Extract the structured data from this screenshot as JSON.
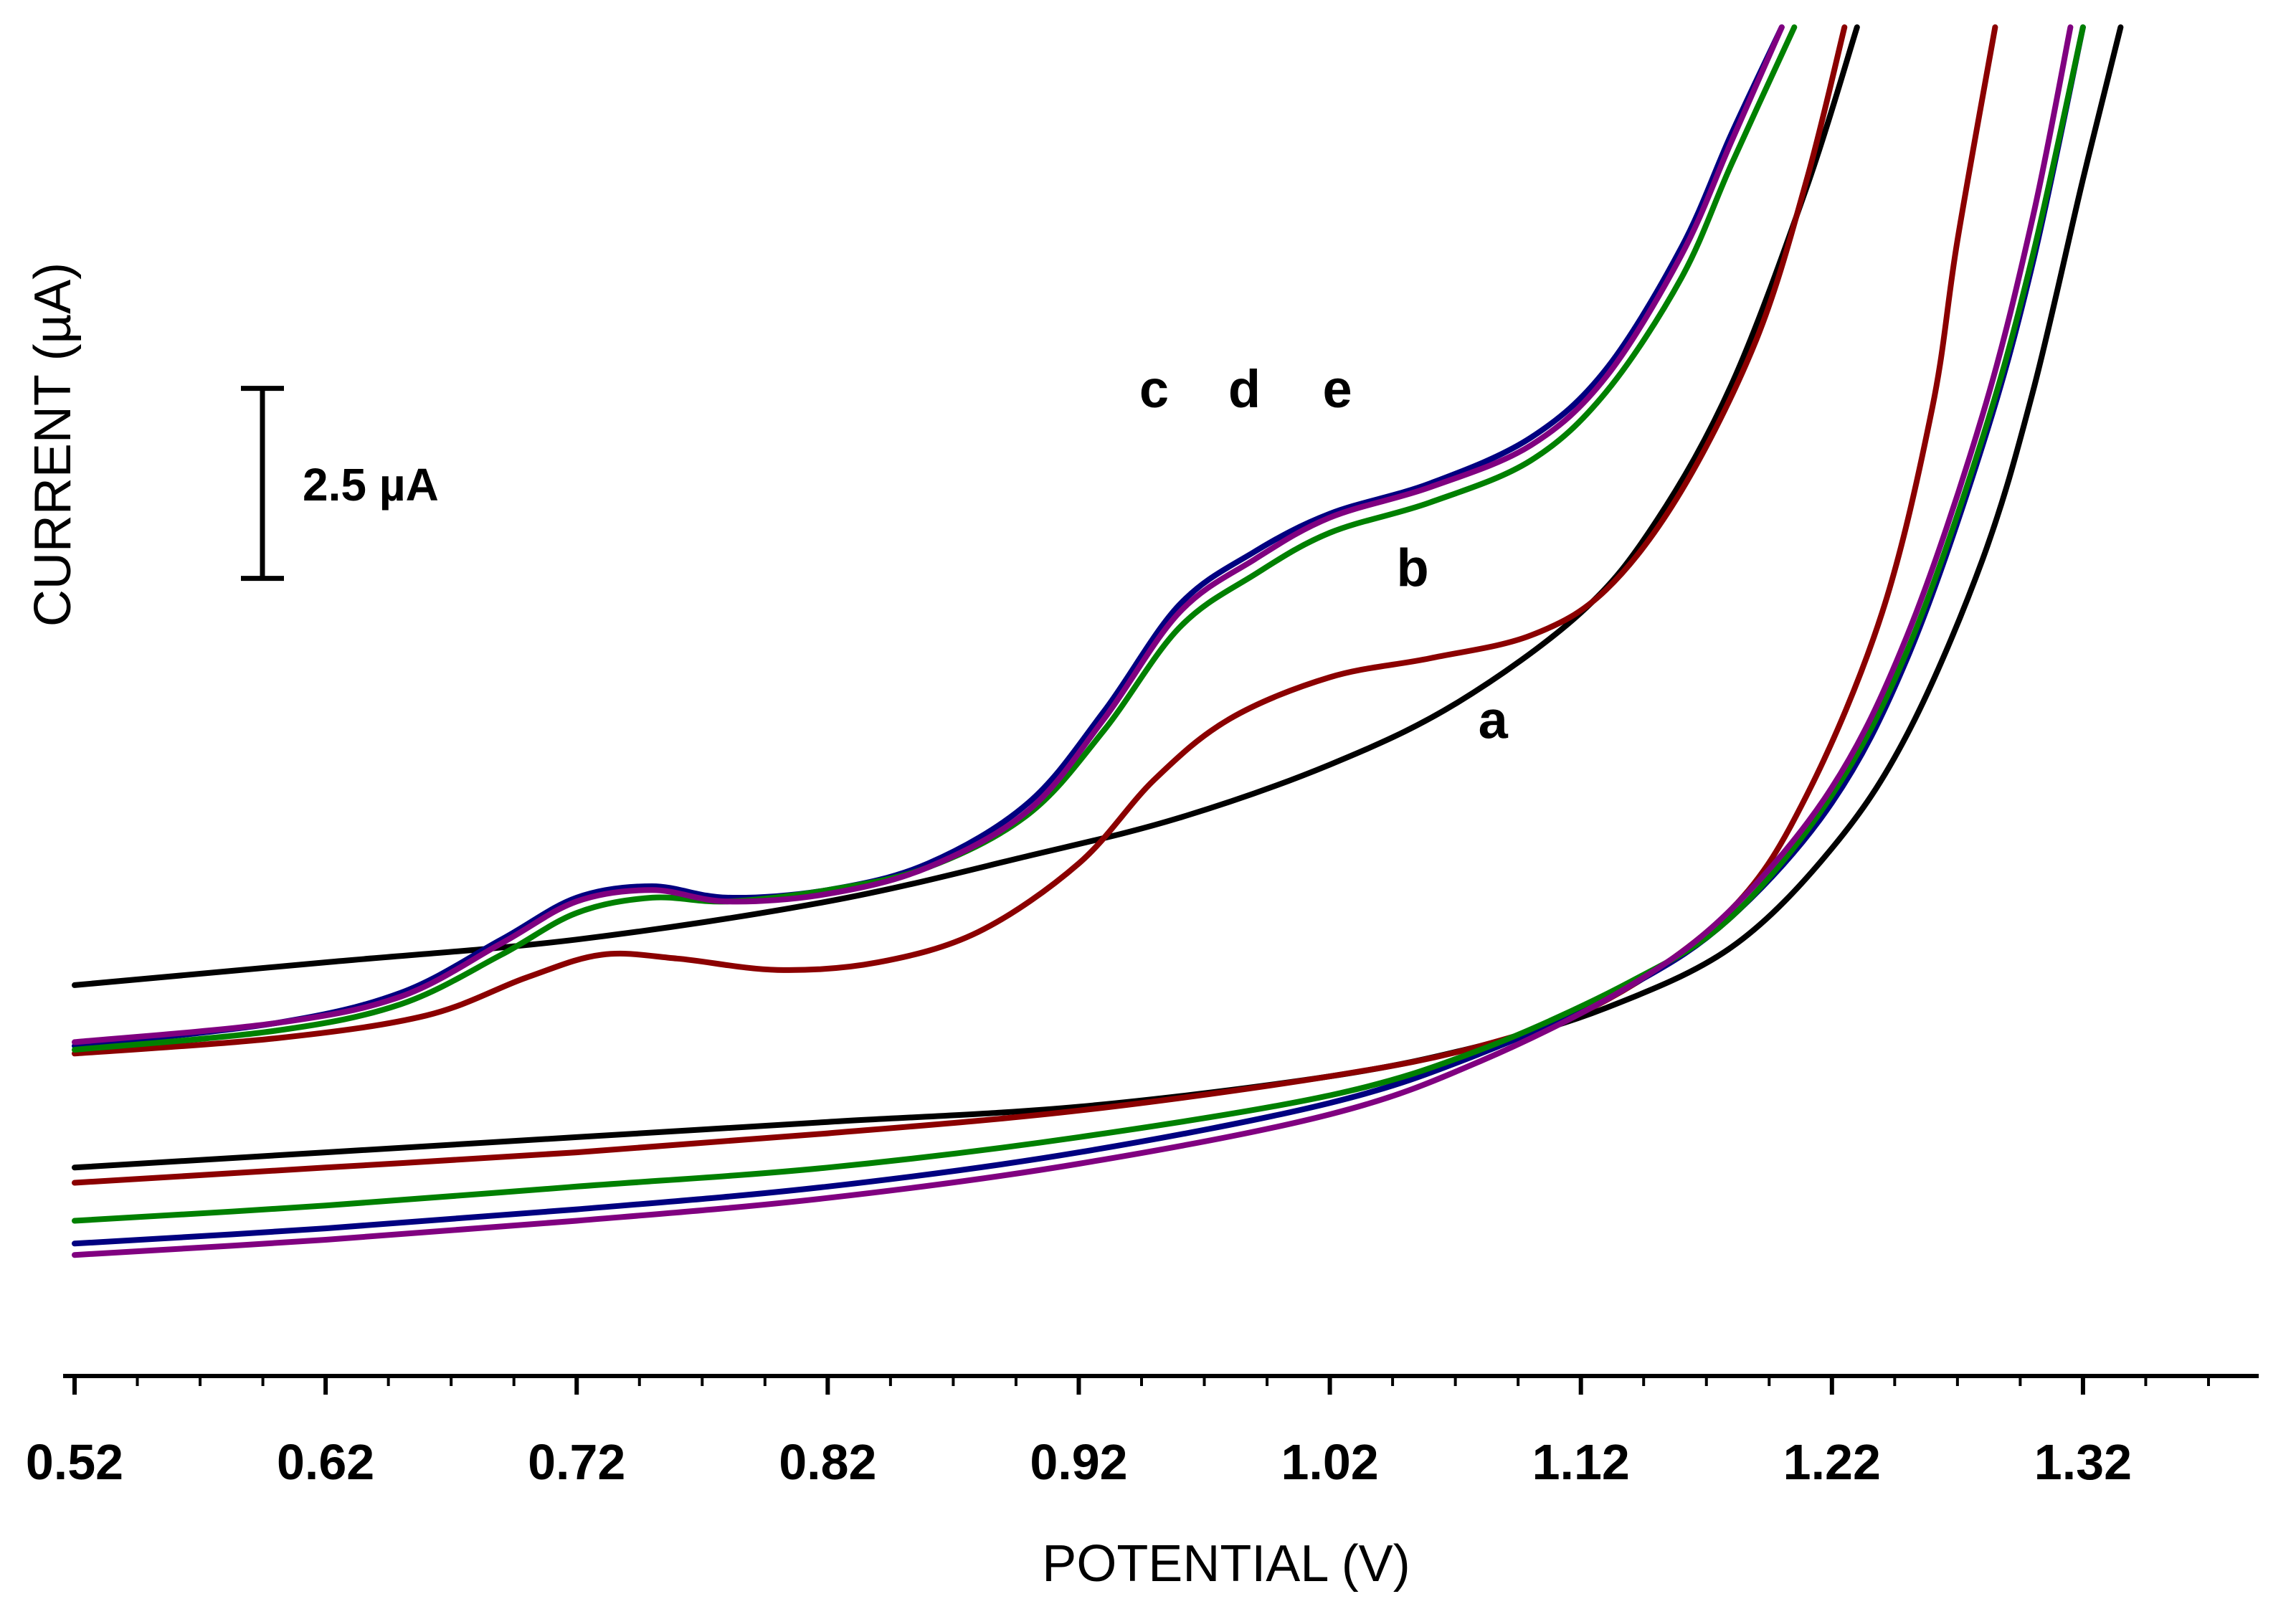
{
  "chart_data": {
    "type": "line",
    "title": "",
    "xlabel": "POTENTIAL (V)",
    "ylabel": "CURRENT (µA)",
    "xlim": [
      0.52,
      1.39
    ],
    "ylim": [
      -5.3,
      13.3
    ],
    "x_ticks": [
      0.52,
      0.62,
      0.72,
      0.82,
      0.92,
      1.02,
      1.12,
      1.22,
      1.32
    ],
    "x_tick_labels": [
      "0.52",
      "0.62",
      "0.72",
      "0.82",
      "0.92",
      "1.02",
      "1.12",
      "1.22",
      "1.32"
    ],
    "y_ticks_shown": false,
    "scale_bar": {
      "label": "2.5 µA",
      "value": 2.5,
      "anchor_y": 8.55
    },
    "curve_labels": [
      {
        "text": "a",
        "x": 1.085,
        "y": 3.95
      },
      {
        "text": "b",
        "x": 1.053,
        "y": 5.95
      },
      {
        "text": "c",
        "x": 0.95,
        "y": 8.3
      },
      {
        "text": "d",
        "x": 0.986,
        "y": 8.3
      },
      {
        "text": "e",
        "x": 1.023,
        "y": 8.3
      }
    ],
    "series": [
      {
        "name": "a",
        "color": "#000000",
        "part": "forward",
        "x": [
          0.52,
          0.62,
          0.72,
          0.82,
          0.9,
          0.96,
          1.02,
          1.07,
          1.12,
          1.15,
          1.18,
          1.21,
          1.23
        ],
        "y": [
          0.7,
          1.0,
          1.3,
          1.8,
          2.4,
          2.9,
          3.6,
          4.4,
          5.6,
          6.8,
          8.6,
          11.2,
          13.3
        ]
      },
      {
        "name": "a",
        "color": "#000000",
        "part": "reverse",
        "x": [
          0.52,
          0.62,
          0.72,
          0.82,
          0.92,
          1.02,
          1.08,
          1.13,
          1.18,
          1.22,
          1.25,
          1.28,
          1.3,
          1.32,
          1.335
        ],
        "y": [
          -1.7,
          -1.5,
          -1.3,
          -1.1,
          -0.9,
          -0.5,
          -0.1,
          0.4,
          1.2,
          2.5,
          4.0,
          6.3,
          8.5,
          11.3,
          13.3
        ]
      },
      {
        "name": "b",
        "color": "#8b0000",
        "part": "forward",
        "x": [
          0.52,
          0.6,
          0.66,
          0.7,
          0.73,
          0.76,
          0.8,
          0.84,
          0.88,
          0.92,
          0.95,
          0.98,
          1.02,
          1.06,
          1.1,
          1.13,
          1.16,
          1.19,
          1.21,
          1.225
        ],
        "y": [
          -0.2,
          0.0,
          0.3,
          0.8,
          1.1,
          1.05,
          0.9,
          1.0,
          1.4,
          2.3,
          3.4,
          4.2,
          4.75,
          5.0,
          5.3,
          5.9,
          7.2,
          9.2,
          11.3,
          13.3
        ]
      },
      {
        "name": "b",
        "color": "#8b0000",
        "part": "reverse",
        "x": [
          0.52,
          0.62,
          0.72,
          0.82,
          0.92,
          1.02,
          1.08,
          1.13,
          1.18,
          1.21,
          1.24,
          1.26,
          1.27,
          1.285
        ],
        "y": [
          -1.9,
          -1.7,
          -1.5,
          -1.25,
          -0.95,
          -0.5,
          -0.1,
          0.5,
          1.7,
          3.2,
          5.6,
          8.3,
          10.5,
          13.3
        ]
      },
      {
        "name": "c",
        "color": "#000080",
        "part": "forward",
        "x": [
          0.52,
          0.6,
          0.65,
          0.69,
          0.72,
          0.75,
          0.78,
          0.82,
          0.86,
          0.9,
          0.93,
          0.96,
          0.99,
          1.02,
          1.06,
          1.1,
          1.13,
          1.16,
          1.18,
          1.2
        ],
        "y": [
          -0.1,
          0.2,
          0.6,
          1.3,
          1.85,
          2.0,
          1.85,
          1.95,
          2.3,
          3.1,
          4.3,
          5.7,
          6.4,
          6.9,
          7.3,
          7.9,
          8.8,
          10.4,
          11.9,
          13.3
        ]
      },
      {
        "name": "c",
        "color": "#000080",
        "part": "reverse",
        "x": [
          0.52,
          0.62,
          0.72,
          0.82,
          0.92,
          1.02,
          1.08,
          1.14,
          1.18,
          1.22,
          1.25,
          1.28,
          1.3,
          1.32
        ],
        "y": [
          -2.7,
          -2.5,
          -2.25,
          -1.95,
          -1.5,
          -0.85,
          -0.2,
          0.7,
          1.6,
          3.1,
          5.0,
          7.8,
          10.2,
          13.3
        ]
      },
      {
        "name": "d",
        "color": "#008000",
        "part": "forward",
        "x": [
          0.52,
          0.6,
          0.65,
          0.69,
          0.72,
          0.75,
          0.78,
          0.82,
          0.86,
          0.9,
          0.93,
          0.96,
          0.99,
          1.02,
          1.06,
          1.1,
          1.13,
          1.16,
          1.18,
          1.205
        ],
        "y": [
          -0.15,
          0.1,
          0.45,
          1.1,
          1.65,
          1.85,
          1.8,
          1.95,
          2.25,
          2.95,
          4.05,
          5.4,
          6.1,
          6.65,
          7.05,
          7.6,
          8.5,
          10.0,
          11.5,
          13.3
        ]
      },
      {
        "name": "d",
        "color": "#008000",
        "part": "reverse",
        "x": [
          0.52,
          0.62,
          0.72,
          0.82,
          0.92,
          1.02,
          1.08,
          1.14,
          1.18,
          1.22,
          1.25,
          1.28,
          1.3,
          1.32
        ],
        "y": [
          -2.4,
          -2.2,
          -1.95,
          -1.7,
          -1.3,
          -0.75,
          -0.15,
          0.75,
          1.6,
          3.2,
          5.1,
          7.9,
          10.3,
          13.3
        ]
      },
      {
        "name": "e",
        "color": "#800080",
        "part": "forward",
        "x": [
          0.52,
          0.6,
          0.65,
          0.69,
          0.72,
          0.75,
          0.78,
          0.82,
          0.86,
          0.9,
          0.93,
          0.96,
          0.99,
          1.02,
          1.06,
          1.1,
          1.13,
          1.16,
          1.18,
          1.2
        ],
        "y": [
          -0.05,
          0.2,
          0.55,
          1.25,
          1.8,
          1.95,
          1.8,
          1.9,
          2.25,
          3.0,
          4.2,
          5.6,
          6.3,
          6.85,
          7.25,
          7.8,
          8.7,
          10.3,
          11.8,
          13.3
        ]
      },
      {
        "name": "e",
        "color": "#800080",
        "part": "reverse",
        "x": [
          0.52,
          0.62,
          0.72,
          0.82,
          0.92,
          1.02,
          1.08,
          1.14,
          1.18,
          1.22,
          1.25,
          1.28,
          1.3,
          1.315
        ],
        "y": [
          -2.85,
          -2.65,
          -2.4,
          -2.1,
          -1.65,
          -1.0,
          -0.3,
          0.7,
          1.7,
          3.3,
          5.3,
          8.2,
          10.8,
          13.3
        ]
      }
    ]
  }
}
